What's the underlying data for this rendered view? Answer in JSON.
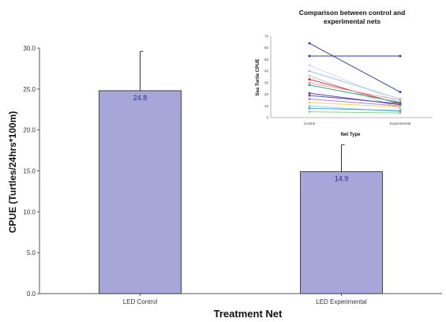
{
  "chart_data": [
    {
      "type": "bar",
      "categories": [
        "LED Control",
        "LED Experimental"
      ],
      "values": [
        24.8,
        14.9
      ],
      "value_labels": [
        "24.8",
        "14.9"
      ],
      "error_upper": [
        29.6,
        18.2
      ],
      "xlabel": "Treatment Net",
      "ylabel": "CPUE (Turtles/24hrs*100m)",
      "ylim": [
        0,
        30
      ],
      "yticks": [
        0,
        5,
        10,
        15,
        20,
        25,
        30
      ],
      "ytick_labels": [
        "0.0",
        "5.0",
        "10.0",
        "15.0",
        "20.0",
        "25.0",
        "30.0"
      ],
      "bar_color": "#a6a6d8",
      "label_color": "#2a2f8f",
      "grid": false
    },
    {
      "type": "line",
      "title_lines": [
        "Comparison between control and",
        "experimental nets"
      ],
      "categories": [
        "Control",
        "Experimental"
      ],
      "xlabel": "Net Type",
      "ylabel": "Sea Turtle CPUE",
      "ylim": [
        0,
        70
      ],
      "yticks": [
        0,
        10,
        20,
        30,
        40,
        50,
        60,
        70
      ],
      "grid": false,
      "series": [
        {
          "color": "#3b3fa0",
          "values": [
            64,
            22
          ]
        },
        {
          "color": "#2e3a9c",
          "values": [
            53,
            53
          ]
        },
        {
          "color": "#c9dcef",
          "values": [
            45,
            13
          ]
        },
        {
          "color": "#9fc3e8",
          "values": [
            40,
            16
          ]
        },
        {
          "color": "#c8c8c8",
          "values": [
            36,
            8
          ]
        },
        {
          "color": "#d1292e",
          "values": [
            33,
            12
          ]
        },
        {
          "color": "#e8a0a8",
          "values": [
            30,
            15
          ]
        },
        {
          "color": "#2fa77b",
          "values": [
            28,
            13
          ]
        },
        {
          "color": "#7b3aa0",
          "values": [
            21,
            11
          ]
        },
        {
          "color": "#3f58c0",
          "values": [
            19,
            12
          ]
        },
        {
          "color": "#b77ec6",
          "values": [
            16,
            10
          ]
        },
        {
          "color": "#f2d35a",
          "values": [
            13,
            9
          ]
        },
        {
          "color": "#8ad6e0",
          "values": [
            10,
            5
          ]
        },
        {
          "color": "#4aa3d6",
          "values": [
            8,
            6
          ]
        },
        {
          "color": "#8bd18b",
          "values": [
            5,
            4
          ]
        }
      ]
    }
  ]
}
